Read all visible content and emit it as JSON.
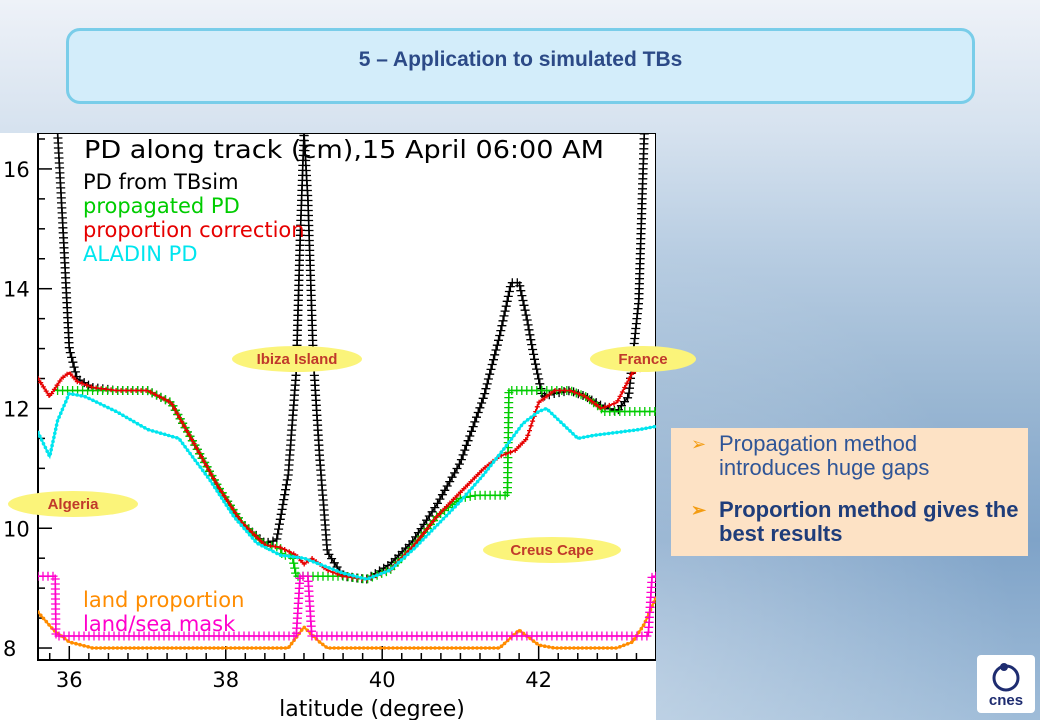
{
  "header": {
    "title": "5 – Application to simulated TBs"
  },
  "callouts": {
    "ibiza": "Ibiza Island",
    "france": "France",
    "algeria": "Algeria",
    "creus": "Creus Cape"
  },
  "notes": {
    "item1": "Propagation method introduces huge gaps",
    "item2": "Proportion method gives the best results"
  },
  "logo": {
    "text": "cnes"
  },
  "colors": {
    "title_bg": "#d3edfa",
    "title_border": "#79cde9",
    "title_text": "#2c4a87",
    "callout_bg": "#fbf47a",
    "callout_text": "#c0392b",
    "note_bg": "#fde2c5"
  },
  "chart_data": {
    "type": "line",
    "title": "PD along track (cm),15 April 06:00 AM",
    "xlabel": "latitude (degree)",
    "ylabel": "",
    "xlim": [
      35.6,
      43.5
    ],
    "ylim": [
      7.8,
      16.6
    ],
    "xticks": [
      36,
      38,
      40,
      42
    ],
    "yticks": [
      8,
      10,
      12,
      14,
      16
    ],
    "legend_upper": [
      "PD from TBsim",
      "propagated PD",
      "proportion correction",
      "ALADIN PD"
    ],
    "legend_lower": [
      "land proportion",
      "land/sea mask"
    ],
    "series": [
      {
        "name": "PD from TBsim",
        "color": "#000000",
        "marker": "plus",
        "x": [
          35.85,
          35.92,
          36.0,
          36.1,
          36.3,
          36.6,
          37.0,
          37.3,
          37.6,
          37.9,
          38.2,
          38.5,
          38.65,
          38.8,
          38.9,
          38.95,
          39.0,
          39.05,
          39.12,
          39.2,
          39.3,
          39.5,
          39.8,
          40.1,
          40.4,
          40.7,
          41.0,
          41.3,
          41.5,
          41.65,
          41.75,
          41.85,
          41.95,
          42.05,
          42.2,
          42.4,
          42.6,
          42.8,
          43.0,
          43.15,
          43.28,
          43.35
        ],
        "y": [
          16.6,
          15.0,
          13.0,
          12.5,
          12.35,
          12.3,
          12.3,
          12.1,
          11.4,
          10.7,
          10.1,
          9.75,
          9.8,
          10.9,
          12.6,
          14.8,
          16.6,
          15.5,
          12.8,
          11.2,
          9.6,
          9.2,
          9.15,
          9.4,
          9.8,
          10.4,
          11.1,
          12.2,
          13.2,
          14.1,
          14.1,
          13.5,
          12.8,
          12.2,
          12.25,
          12.3,
          12.2,
          12.05,
          11.95,
          12.2,
          13.8,
          16.6
        ]
      },
      {
        "name": "propagated PD",
        "color": "#00cc00",
        "marker": "plus",
        "x": [
          35.85,
          36.0,
          36.3,
          36.6,
          37.0,
          37.3,
          37.6,
          37.9,
          38.2,
          38.5,
          38.7,
          38.72,
          38.85,
          38.9,
          39.1,
          39.2,
          39.5,
          39.8,
          40.1,
          40.4,
          40.7,
          41.0,
          41.2,
          41.5,
          41.6,
          41.62,
          41.8,
          41.85,
          42.0,
          42.2,
          42.4,
          42.6,
          42.8,
          42.82,
          43.0,
          43.5
        ],
        "y": [
          12.3,
          12.3,
          12.3,
          12.3,
          12.3,
          12.1,
          11.4,
          10.7,
          10.1,
          9.72,
          9.68,
          9.55,
          9.55,
          9.2,
          9.2,
          9.2,
          9.2,
          9.15,
          9.3,
          9.7,
          10.2,
          10.5,
          10.55,
          10.55,
          10.55,
          12.3,
          12.3,
          12.3,
          12.3,
          12.3,
          12.3,
          12.2,
          12.0,
          11.95,
          11.95,
          11.95
        ]
      },
      {
        "name": "proportion correction",
        "color": "#e60000",
        "marker": "small-plus",
        "x": [
          35.6,
          35.75,
          35.9,
          36.0,
          36.1,
          36.3,
          36.6,
          37.0,
          37.3,
          37.6,
          37.9,
          38.2,
          38.5,
          38.7,
          38.9,
          39.0,
          39.1,
          39.3,
          39.5,
          39.8,
          40.1,
          40.4,
          40.7,
          41.0,
          41.3,
          41.5,
          41.7,
          41.85,
          42.0,
          42.2,
          42.4,
          42.6,
          42.8,
          43.0,
          43.2,
          43.5
        ],
        "y": [
          12.5,
          12.2,
          12.5,
          12.6,
          12.45,
          12.35,
          12.3,
          12.3,
          12.1,
          11.4,
          10.7,
          10.1,
          9.72,
          9.68,
          9.55,
          9.4,
          9.5,
          9.3,
          9.2,
          9.15,
          9.3,
          9.7,
          10.2,
          10.6,
          11.0,
          11.2,
          11.3,
          11.5,
          12.1,
          12.3,
          12.3,
          12.2,
          12.0,
          12.1,
          12.6,
          12.75
        ]
      },
      {
        "name": "ALADIN PD",
        "color": "#00e5ee",
        "marker": "dot",
        "x": [
          35.6,
          35.75,
          35.85,
          36.0,
          36.2,
          36.6,
          37.0,
          37.4,
          37.8,
          38.1,
          38.4,
          38.7,
          39.0,
          39.2,
          39.5,
          39.8,
          40.1,
          40.4,
          40.7,
          41.0,
          41.3,
          41.6,
          41.8,
          42.0,
          42.1,
          42.3,
          42.5,
          42.7,
          43.0,
          43.3,
          43.5
        ],
        "y": [
          11.6,
          11.2,
          11.8,
          12.25,
          12.2,
          11.95,
          11.65,
          11.5,
          10.8,
          10.2,
          9.75,
          9.55,
          9.5,
          9.4,
          9.25,
          9.15,
          9.3,
          9.65,
          10.05,
          10.45,
          10.9,
          11.4,
          11.75,
          11.95,
          12.0,
          11.75,
          11.5,
          11.55,
          11.6,
          11.65,
          11.7
        ]
      },
      {
        "name": "land proportion",
        "color": "#ff8c00",
        "marker": "dot",
        "x": [
          35.6,
          35.7,
          35.8,
          36.0,
          36.3,
          38.8,
          39.0,
          39.2,
          39.3,
          41.5,
          41.75,
          42.0,
          42.2,
          43.0,
          43.2,
          43.35,
          43.5
        ],
        "y": [
          8.6,
          8.45,
          8.3,
          8.1,
          8.0,
          8.0,
          8.35,
          8.1,
          8.0,
          8.0,
          8.3,
          8.05,
          8.0,
          8.0,
          8.1,
          8.4,
          8.85
        ]
      },
      {
        "name": "land/sea mask",
        "color": "#ff00cc",
        "marker": "plus",
        "x": [
          35.6,
          35.82,
          35.83,
          38.9,
          38.95,
          39.05,
          39.1,
          43.4,
          43.45,
          43.5
        ],
        "y": [
          9.2,
          9.2,
          8.2,
          8.2,
          9.2,
          9.2,
          8.2,
          8.2,
          9.2,
          9.2
        ]
      }
    ]
  }
}
